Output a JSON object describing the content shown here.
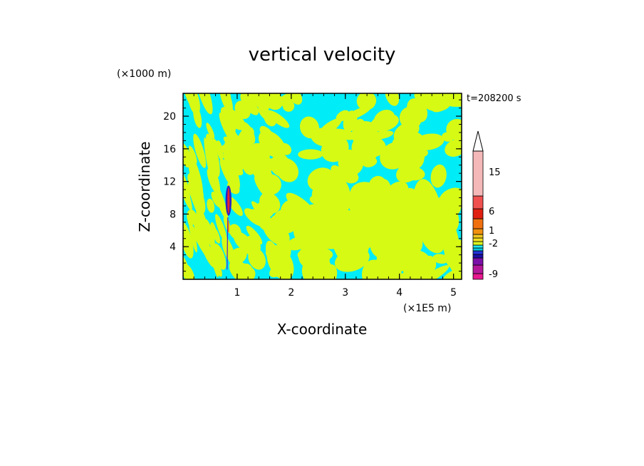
{
  "chart_data": {
    "type": "heatmap",
    "title": "vertical velocity",
    "xlabel": "X-coordinate",
    "ylabel": "Z-coordinate",
    "x_unit": "(×1E5 m)",
    "y_unit": "(×1000 m)",
    "time_label": "t=208200 s",
    "xlim": [
      0,
      5.15
    ],
    "ylim": [
      0,
      22.8
    ],
    "x_ticks": [
      1,
      2,
      3,
      4,
      5
    ],
    "y_ticks": [
      4,
      8,
      12,
      16,
      20
    ],
    "colorbar": {
      "ticks": [
        "15",
        "6",
        "1",
        "-2",
        "-9"
      ],
      "levels": [
        {
          "color": "#e8178f"
        },
        {
          "color": "#b4169a"
        },
        {
          "color": "#7a10a8"
        },
        {
          "color": "#1d10a8"
        },
        {
          "color": "#2233d8"
        },
        {
          "color": "#00c8e0"
        },
        {
          "color": "#20e8f0"
        },
        {
          "color": "#d8f520"
        },
        {
          "color": "#f5e020"
        },
        {
          "color": "#f0c820"
        },
        {
          "color": "#f09010"
        },
        {
          "color": "#f07010"
        },
        {
          "color": "#e02010"
        },
        {
          "color": "#f05050"
        },
        {
          "color": "#f5b8b8"
        }
      ]
    },
    "colors": {
      "background": "#00ecf6",
      "positive": "#d6fa14",
      "updraft_core": "#e8242c",
      "downdraft_core": "#2a20c8"
    }
  }
}
